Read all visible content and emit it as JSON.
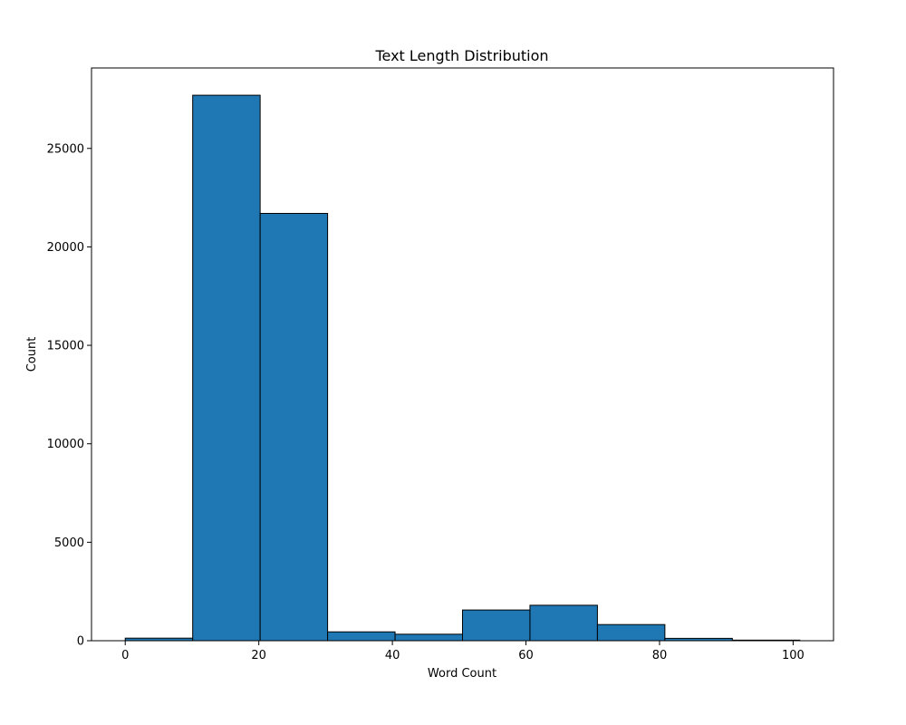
{
  "chart_data": {
    "type": "bar",
    "title": "Text Length Distribution",
    "xlabel": "Word Count",
    "ylabel": "Count",
    "bins": [
      {
        "start": 0,
        "end": 10.1,
        "count": 130
      },
      {
        "start": 10.1,
        "end": 20.2,
        "count": 27700
      },
      {
        "start": 20.2,
        "end": 30.3,
        "count": 21700
      },
      {
        "start": 30.3,
        "end": 40.4,
        "count": 450
      },
      {
        "start": 40.4,
        "end": 50.5,
        "count": 330
      },
      {
        "start": 50.5,
        "end": 60.6,
        "count": 1560
      },
      {
        "start": 60.6,
        "end": 70.7,
        "count": 1800
      },
      {
        "start": 70.7,
        "end": 80.8,
        "count": 820
      },
      {
        "start": 80.8,
        "end": 90.9,
        "count": 120
      },
      {
        "start": 90.9,
        "end": 101,
        "count": 30
      }
    ],
    "xlim": [
      -5.05,
      106.05
    ],
    "ylim": [
      0,
      29085
    ],
    "xticks": [
      0,
      20,
      40,
      60,
      80,
      100
    ],
    "yticks": [
      0,
      5000,
      10000,
      15000,
      20000,
      25000
    ],
    "grid": false,
    "bar_color": "#1f77b4",
    "edge_color": "#000000"
  }
}
